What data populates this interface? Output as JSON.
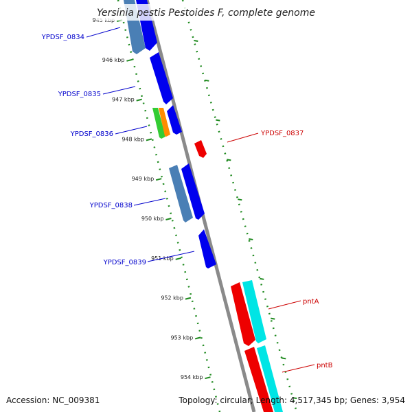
{
  "title": "Yersinia pestis Pestoides F, complete genome",
  "footer": {
    "accession": "Accession: NC_009381",
    "summary": "Topology: circular; Length: 4,517,345 bp; Genes: 3,954"
  },
  "colors": {
    "backbone": "#8a8a8a",
    "dotted_track": "#1f8a1f",
    "label_forward": "#0000cc",
    "label_reverse": "#cc0000",
    "gene_blue": "#0000ee",
    "gene_steel": "#4a7fb5",
    "gene_green": "#33cc33",
    "gene_orange": "#ff8c00",
    "gene_red": "#ee0000",
    "gene_cyan": "#00e5e5"
  },
  "ticks": [
    {
      "kbp": 945,
      "label": "945 kbp"
    },
    {
      "kbp": 946,
      "label": "946 kbp"
    },
    {
      "kbp": 947,
      "label": "947 kbp"
    },
    {
      "kbp": 948,
      "label": "948 kbp"
    },
    {
      "kbp": 949,
      "label": "949 kbp"
    },
    {
      "kbp": 950,
      "label": "950 kbp"
    },
    {
      "kbp": 951,
      "label": "951 kbp"
    },
    {
      "kbp": 952,
      "label": "952 kbp"
    },
    {
      "kbp": 953,
      "label": "953 kbp"
    },
    {
      "kbp": 954,
      "label": "954 kbp"
    }
  ],
  "gene_labels": [
    {
      "text": "YPDSF_0834",
      "strand": "forward"
    },
    {
      "text": "YPDSF_0835",
      "strand": "forward"
    },
    {
      "text": "YPDSF_0836",
      "strand": "forward"
    },
    {
      "text": "YPDSF_0837",
      "strand": "reverse"
    },
    {
      "text": "YPDSF_0838",
      "strand": "forward"
    },
    {
      "text": "YPDSF_0839",
      "strand": "forward"
    },
    {
      "text": "pntA",
      "strand": "reverse"
    },
    {
      "text": "pntB",
      "strand": "reverse"
    }
  ]
}
